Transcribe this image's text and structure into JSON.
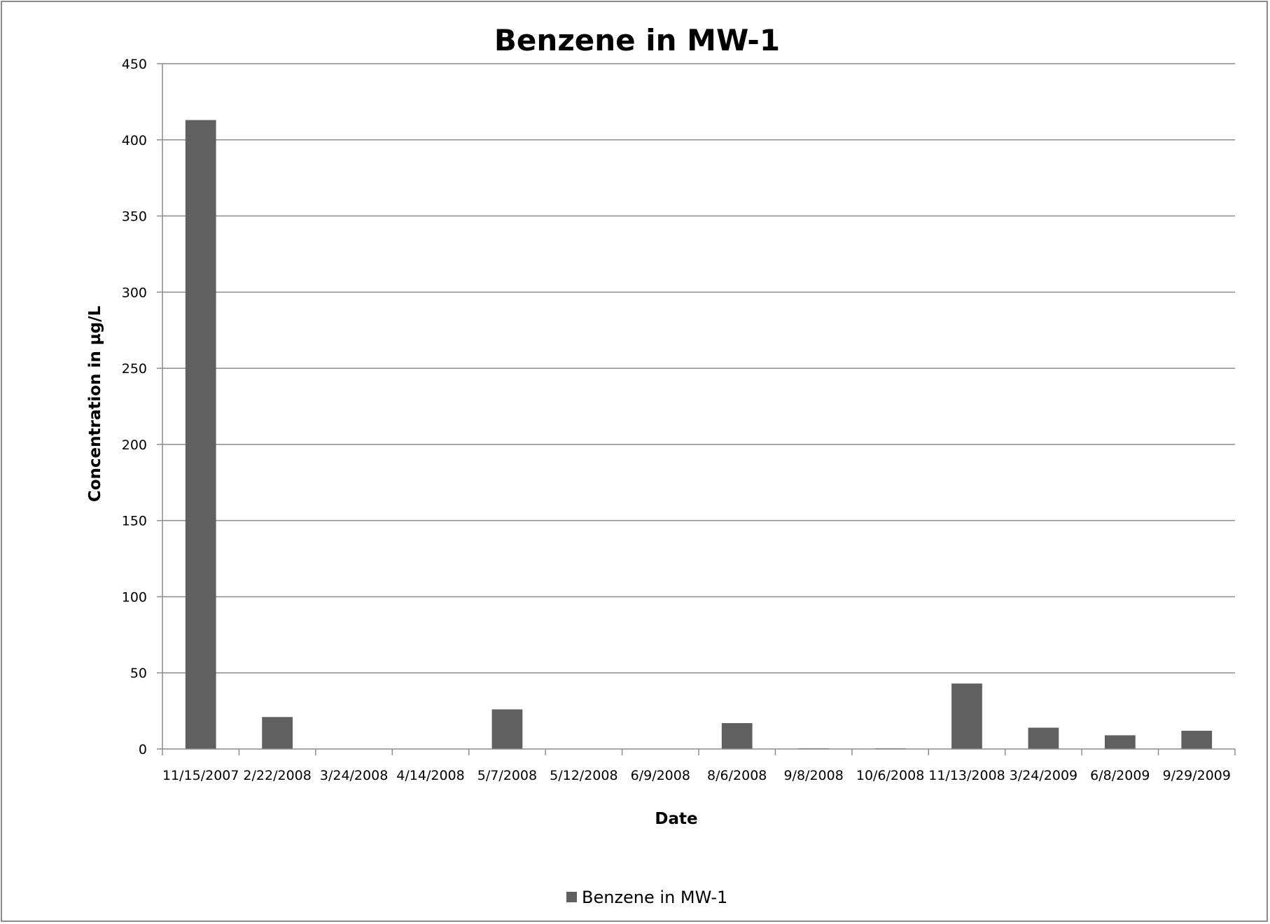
{
  "chart_data": {
    "type": "bar",
    "title": "Benzene in MW-1",
    "xlabel": "Date",
    "ylabel": "Concentration in µg/L",
    "categories": [
      "11/15/2007",
      "2/22/2008",
      "3/24/2008",
      "4/14/2008",
      "5/7/2008",
      "5/12/2008",
      "6/9/2008",
      "8/6/2008",
      "9/8/2008",
      "10/6/2008",
      "11/13/2008",
      "3/24/2009",
      "6/8/2009",
      "9/29/2009"
    ],
    "series": [
      {
        "name": "Benzene in MW-1",
        "values": [
          413,
          21,
          0,
          0,
          26,
          0,
          0,
          17,
          0.5,
          0.5,
          43,
          14,
          9,
          12
        ]
      }
    ],
    "ylim": [
      0,
      450
    ],
    "yticks": [
      0,
      50,
      100,
      150,
      200,
      250,
      300,
      350,
      400,
      450
    ],
    "grid": true,
    "legend_position": "bottom",
    "colors": {
      "bar": "#606060",
      "grid": "#8c8c8c",
      "axis": "#8c8c8c"
    }
  }
}
